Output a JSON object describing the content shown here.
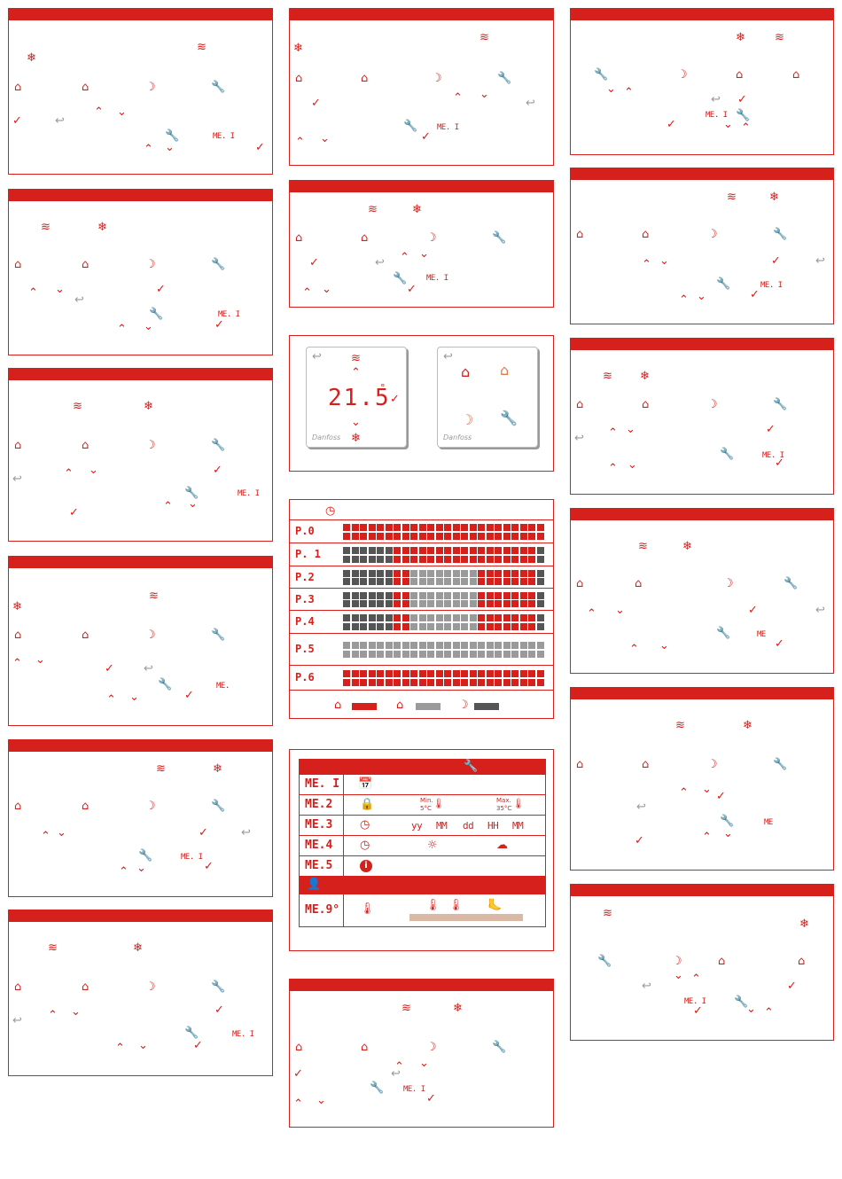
{
  "display": {
    "temperature": "21.5",
    "degree": "°",
    "brand": "Danfoss"
  },
  "menu_codes": {
    "me1": "ME. I",
    "me1_short": "ME.",
    "me1_partial": "ME",
    "me1_dim": "ME."
  },
  "schedule": {
    "rows": [
      {
        "label": "P.0",
        "pattern": "rrrrrrrrrrrrrrrrrrrrrrrr"
      },
      {
        "label": "P. 1",
        "pattern": "ddddddrrrrrrrrrrrrrrrrrd"
      },
      {
        "label": "P.2",
        "pattern": "ddddddrrggggggggrrrrrrrd"
      },
      {
        "label": "P.3",
        "pattern": "ddddddrrggggggggrrrrrrrd"
      },
      {
        "label": "P.4",
        "pattern": "ddddddrrggggggggrrrrrrrd"
      },
      {
        "label": "P.5",
        "pattern": "gggggggggggggggggggggggg"
      },
      {
        "label": "P.6",
        "pattern": "rrrrrrrrrrrrrrrrrrrrrrrr"
      }
    ],
    "legend_colors": {
      "comfort": "#d5201c",
      "away": "#9a9a9a",
      "night": "#555555"
    }
  },
  "menu": {
    "rows": [
      {
        "code": "ME. I"
      },
      {
        "code": "ME.2",
        "min_label": "Min.",
        "min_value": "5°C",
        "max_label": "Max.",
        "max_value": "35°C"
      },
      {
        "code": "ME.3",
        "fields": [
          "yy",
          "MM",
          "dd",
          "HH",
          "MM"
        ]
      },
      {
        "code": "ME.4"
      },
      {
        "code": "ME.5"
      },
      {
        "code": "ME.9°"
      }
    ]
  },
  "colors": {
    "accent": "#d5201c",
    "gray": "#9a9a9a",
    "dark": "#555555"
  }
}
